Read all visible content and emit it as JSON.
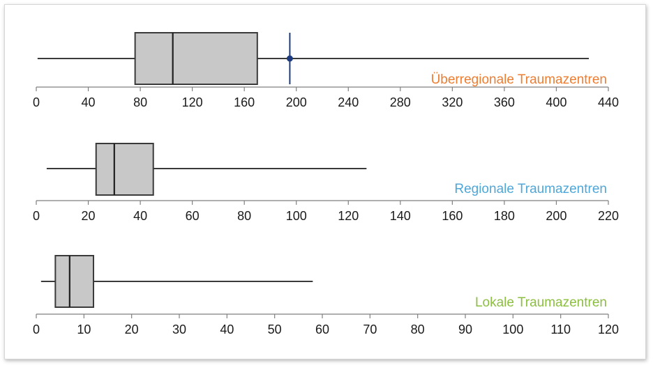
{
  "chart_data": [
    {
      "type": "boxplot",
      "series_label": "Überregionale Traumazentren",
      "label_color": "#ed7d31",
      "xlim": [
        0,
        440
      ],
      "ticks": [
        0,
        40,
        80,
        120,
        160,
        200,
        240,
        280,
        320,
        360,
        400,
        440
      ],
      "tick_labels": [
        "0",
        "40",
        "80",
        "120",
        "160",
        "200",
        "240",
        "280",
        "320",
        "360",
        "400",
        "440"
      ],
      "whisker_low": 1,
      "q1": 76,
      "median": 105,
      "q3": 170,
      "whisker_high": 425,
      "marker": {
        "value": 195,
        "color": "#1f3b80"
      },
      "box_color": "#c8c8c8"
    },
    {
      "type": "boxplot",
      "series_label": "Regionale Traumazentren",
      "label_color": "#4fa7d8",
      "xlim": [
        0,
        220
      ],
      "ticks": [
        0,
        20,
        40,
        60,
        80,
        100,
        120,
        140,
        160,
        180,
        200,
        220
      ],
      "tick_labels": [
        "0",
        "20",
        "40",
        "60",
        "80",
        "100",
        "120",
        "140",
        "160",
        "180",
        "200",
        "220"
      ],
      "whisker_low": 4,
      "q1": 23,
      "median": 30,
      "q3": 45,
      "whisker_high": 127,
      "box_color": "#c8c8c8"
    },
    {
      "type": "boxplot",
      "series_label": "Lokale Traumazentren",
      "label_color": "#8cbf3f",
      "xlim": [
        0,
        120
      ],
      "ticks": [
        0,
        10,
        20,
        30,
        40,
        50,
        60,
        70,
        80,
        90,
        100,
        110,
        120
      ],
      "tick_labels": [
        "0",
        "10",
        "20",
        "30",
        "40",
        "50",
        "60",
        "70",
        "80",
        "90",
        "100",
        "110",
        "120"
      ],
      "whisker_low": 1,
      "q1": 4,
      "median": 7,
      "q3": 12,
      "whisker_high": 58,
      "box_color": "#c8c8c8"
    }
  ]
}
